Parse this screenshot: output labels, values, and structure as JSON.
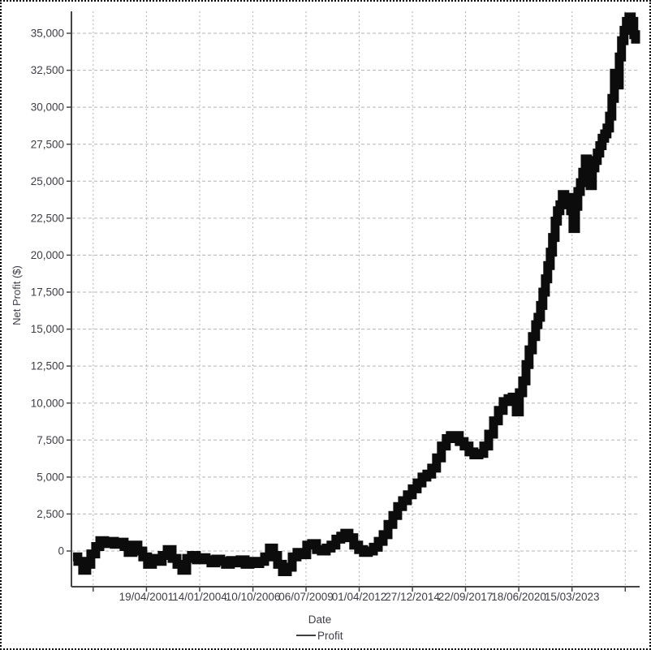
{
  "chart_data": {
    "type": "line",
    "title": "",
    "xlabel": "Date",
    "ylabel": "Net Profit ($)",
    "legend": [
      {
        "name": "Profit",
        "color": "#0c0c0c"
      }
    ],
    "legend_position": "bottom-center",
    "grid": true,
    "x_unit": "decimal_year",
    "xlim": [
      1997.44,
      2026.68
    ],
    "ylim": [
      -2414,
      36481
    ],
    "y_ticks": [
      0,
      2500,
      5000,
      7500,
      10000,
      12500,
      15000,
      17500,
      20000,
      22500,
      25000,
      27500,
      30000,
      32500,
      35000
    ],
    "y_tick_labels": [
      "0",
      "2,500",
      "5,000",
      "7,500",
      "10,000",
      "12,500",
      "15,000",
      "17,500",
      "20,000",
      "22,500",
      "25,000",
      "27,500",
      "30,000",
      "32,500",
      "35,000"
    ],
    "x_ticks": [
      1998.56,
      2001.3,
      2004.04,
      2006.78,
      2009.51,
      2012.25,
      2014.99,
      2017.72,
      2020.46,
      2023.2,
      2025.94
    ],
    "x_tick_labels": [
      "",
      "19/04/2001",
      "14/01/2004",
      "10/10/2006",
      "06/07/2009",
      "01/04/2012",
      "27/12/2014",
      "22/09/2017",
      "18/06/2020",
      "15/03/2023",
      ""
    ],
    "series": [
      {
        "name": "Profit",
        "color": "#0c0c0c",
        "interpolation": "step-after",
        "points": [
          [
            1997.52,
            -400
          ],
          [
            1997.77,
            -700
          ],
          [
            1998.02,
            -1300
          ],
          [
            1998.23,
            -900
          ],
          [
            1998.44,
            -200
          ],
          [
            1998.69,
            300
          ],
          [
            1998.9,
            700
          ],
          [
            1999.15,
            500
          ],
          [
            1999.4,
            650
          ],
          [
            1999.65,
            450
          ],
          [
            1999.9,
            600
          ],
          [
            2000.15,
            300
          ],
          [
            2000.36,
            -100
          ],
          [
            2000.61,
            400
          ],
          [
            2000.86,
            0
          ],
          [
            2001.11,
            -400
          ],
          [
            2001.36,
            -900
          ],
          [
            2001.61,
            -500
          ],
          [
            2001.86,
            -700
          ],
          [
            2002.11,
            -300
          ],
          [
            2002.37,
            100
          ],
          [
            2002.62,
            -500
          ],
          [
            2002.87,
            -900
          ],
          [
            2003.12,
            -1300
          ],
          [
            2003.37,
            -500
          ],
          [
            2003.62,
            -300
          ],
          [
            2003.87,
            -600
          ],
          [
            2004.12,
            -450
          ],
          [
            2004.37,
            -600
          ],
          [
            2004.62,
            -800
          ],
          [
            2004.87,
            -550
          ],
          [
            2005.12,
            -700
          ],
          [
            2005.37,
            -900
          ],
          [
            2005.62,
            -650
          ],
          [
            2005.87,
            -800
          ],
          [
            2006.12,
            -600
          ],
          [
            2006.38,
            -900
          ],
          [
            2006.63,
            -700
          ],
          [
            2006.88,
            -850
          ],
          [
            2007.13,
            -700
          ],
          [
            2007.38,
            -400
          ],
          [
            2007.63,
            200
          ],
          [
            2007.84,
            -300
          ],
          [
            2008.05,
            -900
          ],
          [
            2008.3,
            -1400
          ],
          [
            2008.55,
            -1100
          ],
          [
            2008.8,
            -400
          ],
          [
            2009.05,
            -100
          ],
          [
            2009.3,
            -250
          ],
          [
            2009.55,
            400
          ],
          [
            2009.8,
            500
          ],
          [
            2010.05,
            100
          ],
          [
            2010.3,
            0
          ],
          [
            2010.55,
            200
          ],
          [
            2010.8,
            400
          ],
          [
            2011.05,
            800
          ],
          [
            2011.3,
            1000
          ],
          [
            2011.51,
            1200
          ],
          [
            2011.72,
            900
          ],
          [
            2011.97,
            400
          ],
          [
            2012.22,
            100
          ],
          [
            2012.47,
            -100
          ],
          [
            2012.72,
            0
          ],
          [
            2012.98,
            250
          ],
          [
            2013.23,
            650
          ],
          [
            2013.48,
            1100
          ],
          [
            2013.73,
            1800
          ],
          [
            2013.98,
            2400
          ],
          [
            2014.23,
            3000
          ],
          [
            2014.48,
            3400
          ],
          [
            2014.73,
            3800
          ],
          [
            2014.98,
            4200
          ],
          [
            2015.23,
            4600
          ],
          [
            2015.48,
            5000
          ],
          [
            2015.73,
            5200
          ],
          [
            2015.98,
            5600
          ],
          [
            2016.23,
            6300
          ],
          [
            2016.48,
            7100
          ],
          [
            2016.73,
            7600
          ],
          [
            2016.94,
            7800
          ],
          [
            2017.15,
            7800
          ],
          [
            2017.4,
            7400
          ],
          [
            2017.65,
            7100
          ],
          [
            2017.9,
            6700
          ],
          [
            2018.15,
            6500
          ],
          [
            2018.41,
            6600
          ],
          [
            2018.66,
            7100
          ],
          [
            2018.91,
            7900
          ],
          [
            2019.16,
            8800
          ],
          [
            2019.41,
            9500
          ],
          [
            2019.66,
            10100
          ],
          [
            2019.91,
            10300
          ],
          [
            2020.12,
            10400
          ],
          [
            2020.33,
            9400
          ],
          [
            2020.49,
            10700
          ],
          [
            2020.66,
            11500
          ],
          [
            2020.83,
            12600
          ],
          [
            2020.99,
            13600
          ],
          [
            2021.16,
            14500
          ],
          [
            2021.33,
            15300
          ],
          [
            2021.45,
            15800
          ],
          [
            2021.58,
            16600
          ],
          [
            2021.7,
            17500
          ],
          [
            2021.83,
            18400
          ],
          [
            2021.95,
            19300
          ],
          [
            2022.08,
            20200
          ],
          [
            2022.2,
            21200
          ],
          [
            2022.33,
            22300
          ],
          [
            2022.45,
            23000
          ],
          [
            2022.58,
            23400
          ],
          [
            2022.7,
            24100
          ],
          [
            2022.83,
            23600
          ],
          [
            2023.0,
            23900
          ],
          [
            2023.13,
            23000
          ],
          [
            2023.25,
            21800
          ],
          [
            2023.38,
            23300
          ],
          [
            2023.5,
            24300
          ],
          [
            2023.63,
            24900
          ],
          [
            2023.75,
            25600
          ],
          [
            2023.88,
            26500
          ],
          [
            2024.0,
            25600
          ],
          [
            2024.13,
            24700
          ],
          [
            2024.25,
            25900
          ],
          [
            2024.38,
            26400
          ],
          [
            2024.5,
            26900
          ],
          [
            2024.63,
            27400
          ],
          [
            2024.75,
            27900
          ],
          [
            2024.88,
            28200
          ],
          [
            2025.0,
            28600
          ],
          [
            2025.13,
            29400
          ],
          [
            2025.25,
            30600
          ],
          [
            2025.38,
            32300
          ],
          [
            2025.5,
            31500
          ],
          [
            2025.63,
            33400
          ],
          [
            2025.75,
            34500
          ],
          [
            2025.88,
            35200
          ],
          [
            2026.0,
            35800
          ],
          [
            2026.13,
            36100
          ],
          [
            2026.25,
            35800
          ],
          [
            2026.38,
            34900
          ],
          [
            2026.47,
            34300
          ]
        ]
      }
    ]
  }
}
